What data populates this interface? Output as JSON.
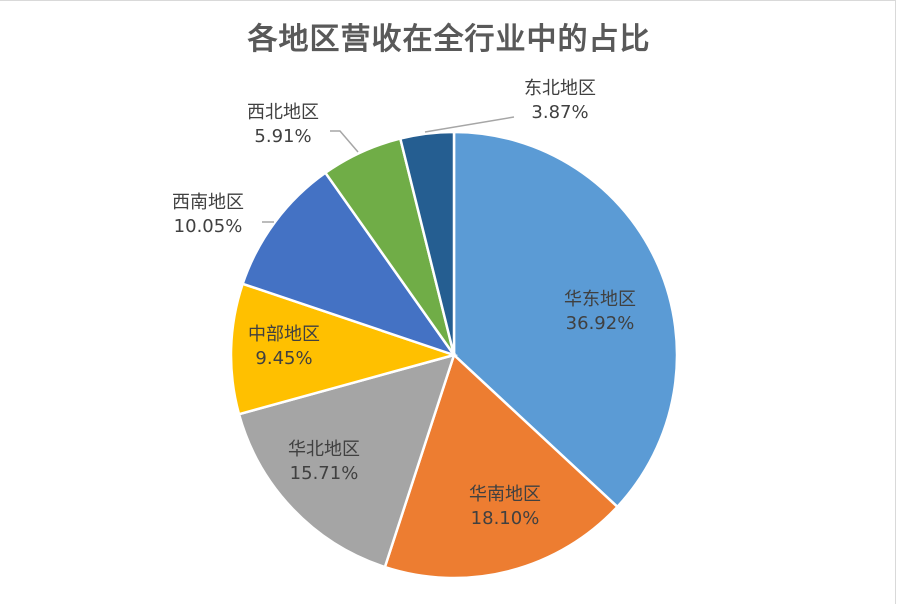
{
  "chart_data": {
    "type": "pie",
    "title": "各地区营收在全行业中的占比",
    "categories": [
      "华东地区",
      "华南地区",
      "华北地区",
      "中部地区",
      "西南地区",
      "西北地区",
      "东北地区"
    ],
    "values": [
      36.92,
      18.1,
      15.71,
      9.45,
      10.05,
      5.91,
      3.87
    ],
    "value_labels": [
      "36.92%",
      "18.10%",
      "15.71%",
      "9.45%",
      "10.05%",
      "5.91%",
      "3.87%"
    ],
    "colors": [
      "#5b9bd5",
      "#ed7d31",
      "#a5a5a5",
      "#ffc000",
      "#4472c4",
      "#70ad47",
      "#255e91"
    ],
    "start_angle": "12 o'clock, clockwise",
    "legend": "none"
  }
}
